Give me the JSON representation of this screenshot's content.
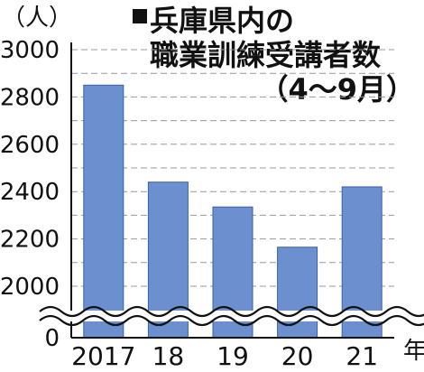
{
  "chart_data": {
    "type": "bar",
    "title_lines": [
      "兵庫県内の",
      "職業訓練受講者数",
      "（4～9月）"
    ],
    "y_unit_label": "（人）",
    "x_unit_label": "年",
    "categories": [
      "2017",
      "18",
      "19",
      "20",
      "21"
    ],
    "values": [
      2850,
      2440,
      2335,
      2165,
      2420
    ],
    "yticks": [
      0,
      2000,
      2200,
      2400,
      2600,
      2800,
      3000
    ],
    "ylim": [
      1900,
      3000
    ],
    "axis_break": true,
    "grid": true,
    "bar_color": "#6b8fcf",
    "bar_stroke": "#3b5fa5"
  }
}
